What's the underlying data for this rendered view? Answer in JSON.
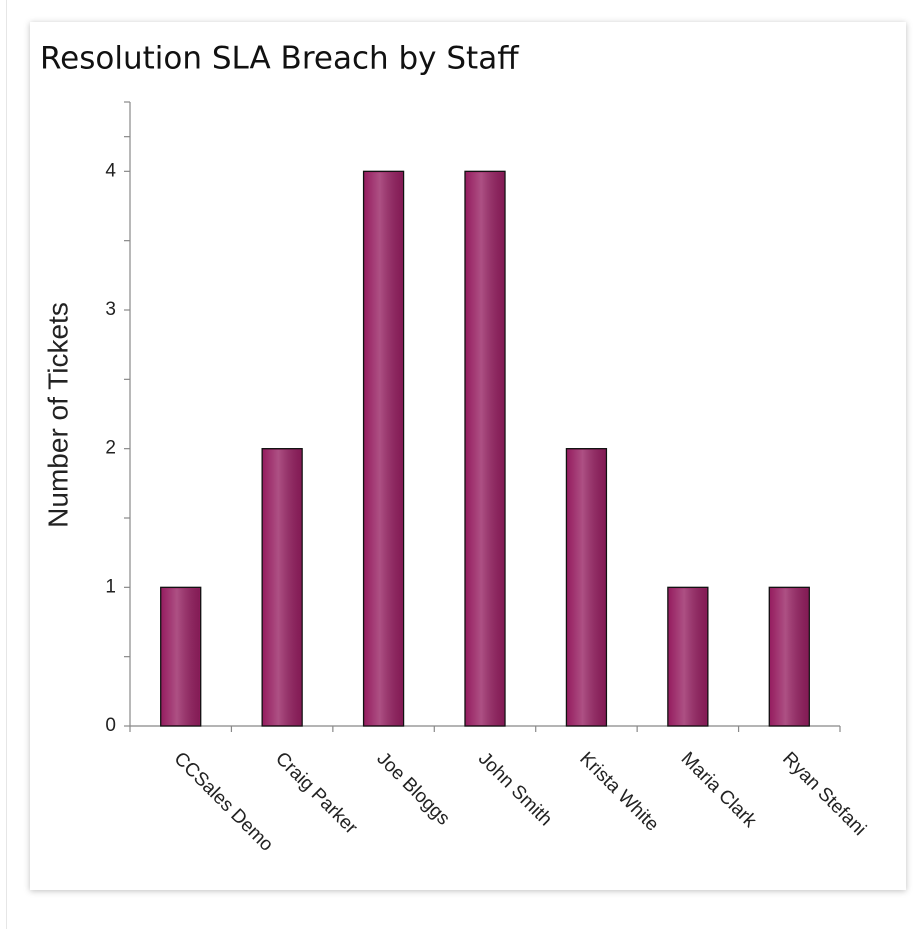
{
  "chart_data": {
    "type": "bar",
    "title": "Resolution SLA Breach by Staff",
    "y_label": "Number of Tickets",
    "categories": [
      "CCSales Demo",
      "Craig Parker",
      "Joe Bloggs",
      "John Smith",
      "Krista White",
      "Maria Clark",
      "Ryan Stefani"
    ],
    "values": [
      1,
      2,
      4,
      4,
      2,
      1,
      1
    ],
    "color": "#961f61",
    "ylim": [
      0,
      4.5
    ],
    "yticks": [
      0,
      1,
      2,
      3,
      4
    ],
    "grid": false
  }
}
